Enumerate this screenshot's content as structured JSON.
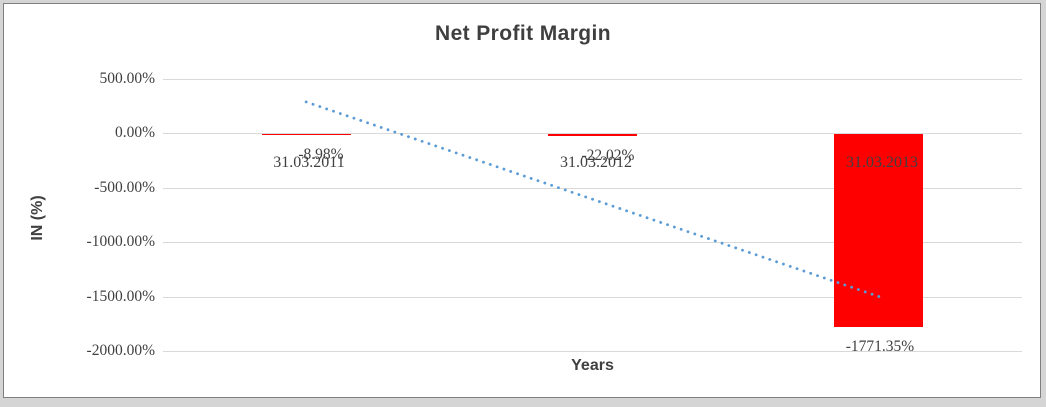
{
  "window": {
    "background": "#d5d5d5",
    "panel_background": "#ffffff",
    "panel_border": "#7f7f7f"
  },
  "chart_data": {
    "type": "bar",
    "title": "Net Profit Margin",
    "xlabel": "Years",
    "ylabel": "IN (%)",
    "categories": [
      "31.03.2011",
      "31.03.2012",
      "31.03.2013"
    ],
    "series": [
      {
        "name": "Net Profit Margin",
        "values": [
          -8.98,
          -22.02,
          -1771.35
        ]
      }
    ],
    "data_labels": [
      "-8.98%",
      "-22.02%",
      "-1771.35%"
    ],
    "y_ticks": [
      {
        "label": "500.00%",
        "value": 500
      },
      {
        "label": "0.00%",
        "value": 0
      },
      {
        "label": "-500.00%",
        "value": -500
      },
      {
        "label": "-1000.00%",
        "value": -1000
      },
      {
        "label": "-1500.00%",
        "value": -1500
      },
      {
        "label": "-2000.00%",
        "value": -2000
      }
    ],
    "ylim": [
      -2000,
      500
    ],
    "grid": true,
    "legend": "none",
    "bar_color": "#ff0000",
    "gridline_color": "#d9d9d9",
    "text_color": "#404040",
    "trendline": {
      "type": "linear",
      "style": "dotted",
      "color": "#5b9bd5",
      "start_value": 285,
      "end_value": -1500
    }
  }
}
